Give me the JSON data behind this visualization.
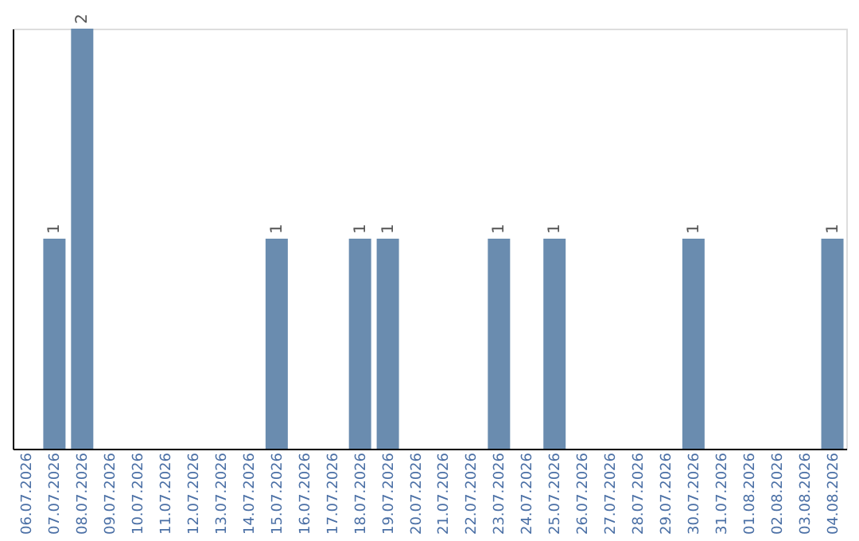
{
  "chart_data": {
    "type": "bar",
    "categories": [
      "06.07.2026",
      "07.07.2026",
      "08.07.2026",
      "09.07.2026",
      "10.07.2026",
      "11.07.2026",
      "12.07.2026",
      "13.07.2026",
      "14.07.2026",
      "15.07.2026",
      "16.07.2026",
      "17.07.2026",
      "18.07.2026",
      "19.07.2026",
      "20.07.2026",
      "21.07.2026",
      "22.07.2026",
      "23.07.2026",
      "24.07.2026",
      "25.07.2026",
      "26.07.2026",
      "27.07.2026",
      "28.07.2026",
      "29.07.2026",
      "30.07.2026",
      "31.07.2026",
      "01.08.2026",
      "02.08.2026",
      "03.08.2026",
      "04.08.2026"
    ],
    "values": [
      0,
      1,
      2,
      0,
      0,
      0,
      0,
      0,
      0,
      1,
      0,
      0,
      1,
      1,
      0,
      0,
      0,
      1,
      0,
      1,
      0,
      0,
      0,
      0,
      1,
      0,
      0,
      0,
      0,
      1
    ],
    "value_labels": [
      null,
      "1",
      "2",
      null,
      null,
      null,
      null,
      null,
      null,
      "1",
      null,
      null,
      "1",
      "1",
      null,
      null,
      null,
      "1",
      null,
      "1",
      null,
      null,
      null,
      null,
      "1",
      null,
      null,
      null,
      null,
      "1"
    ],
    "color": "#6a8caf",
    "ylim": [
      0,
      2
    ],
    "tick_labels": "x",
    "grid": false
  }
}
